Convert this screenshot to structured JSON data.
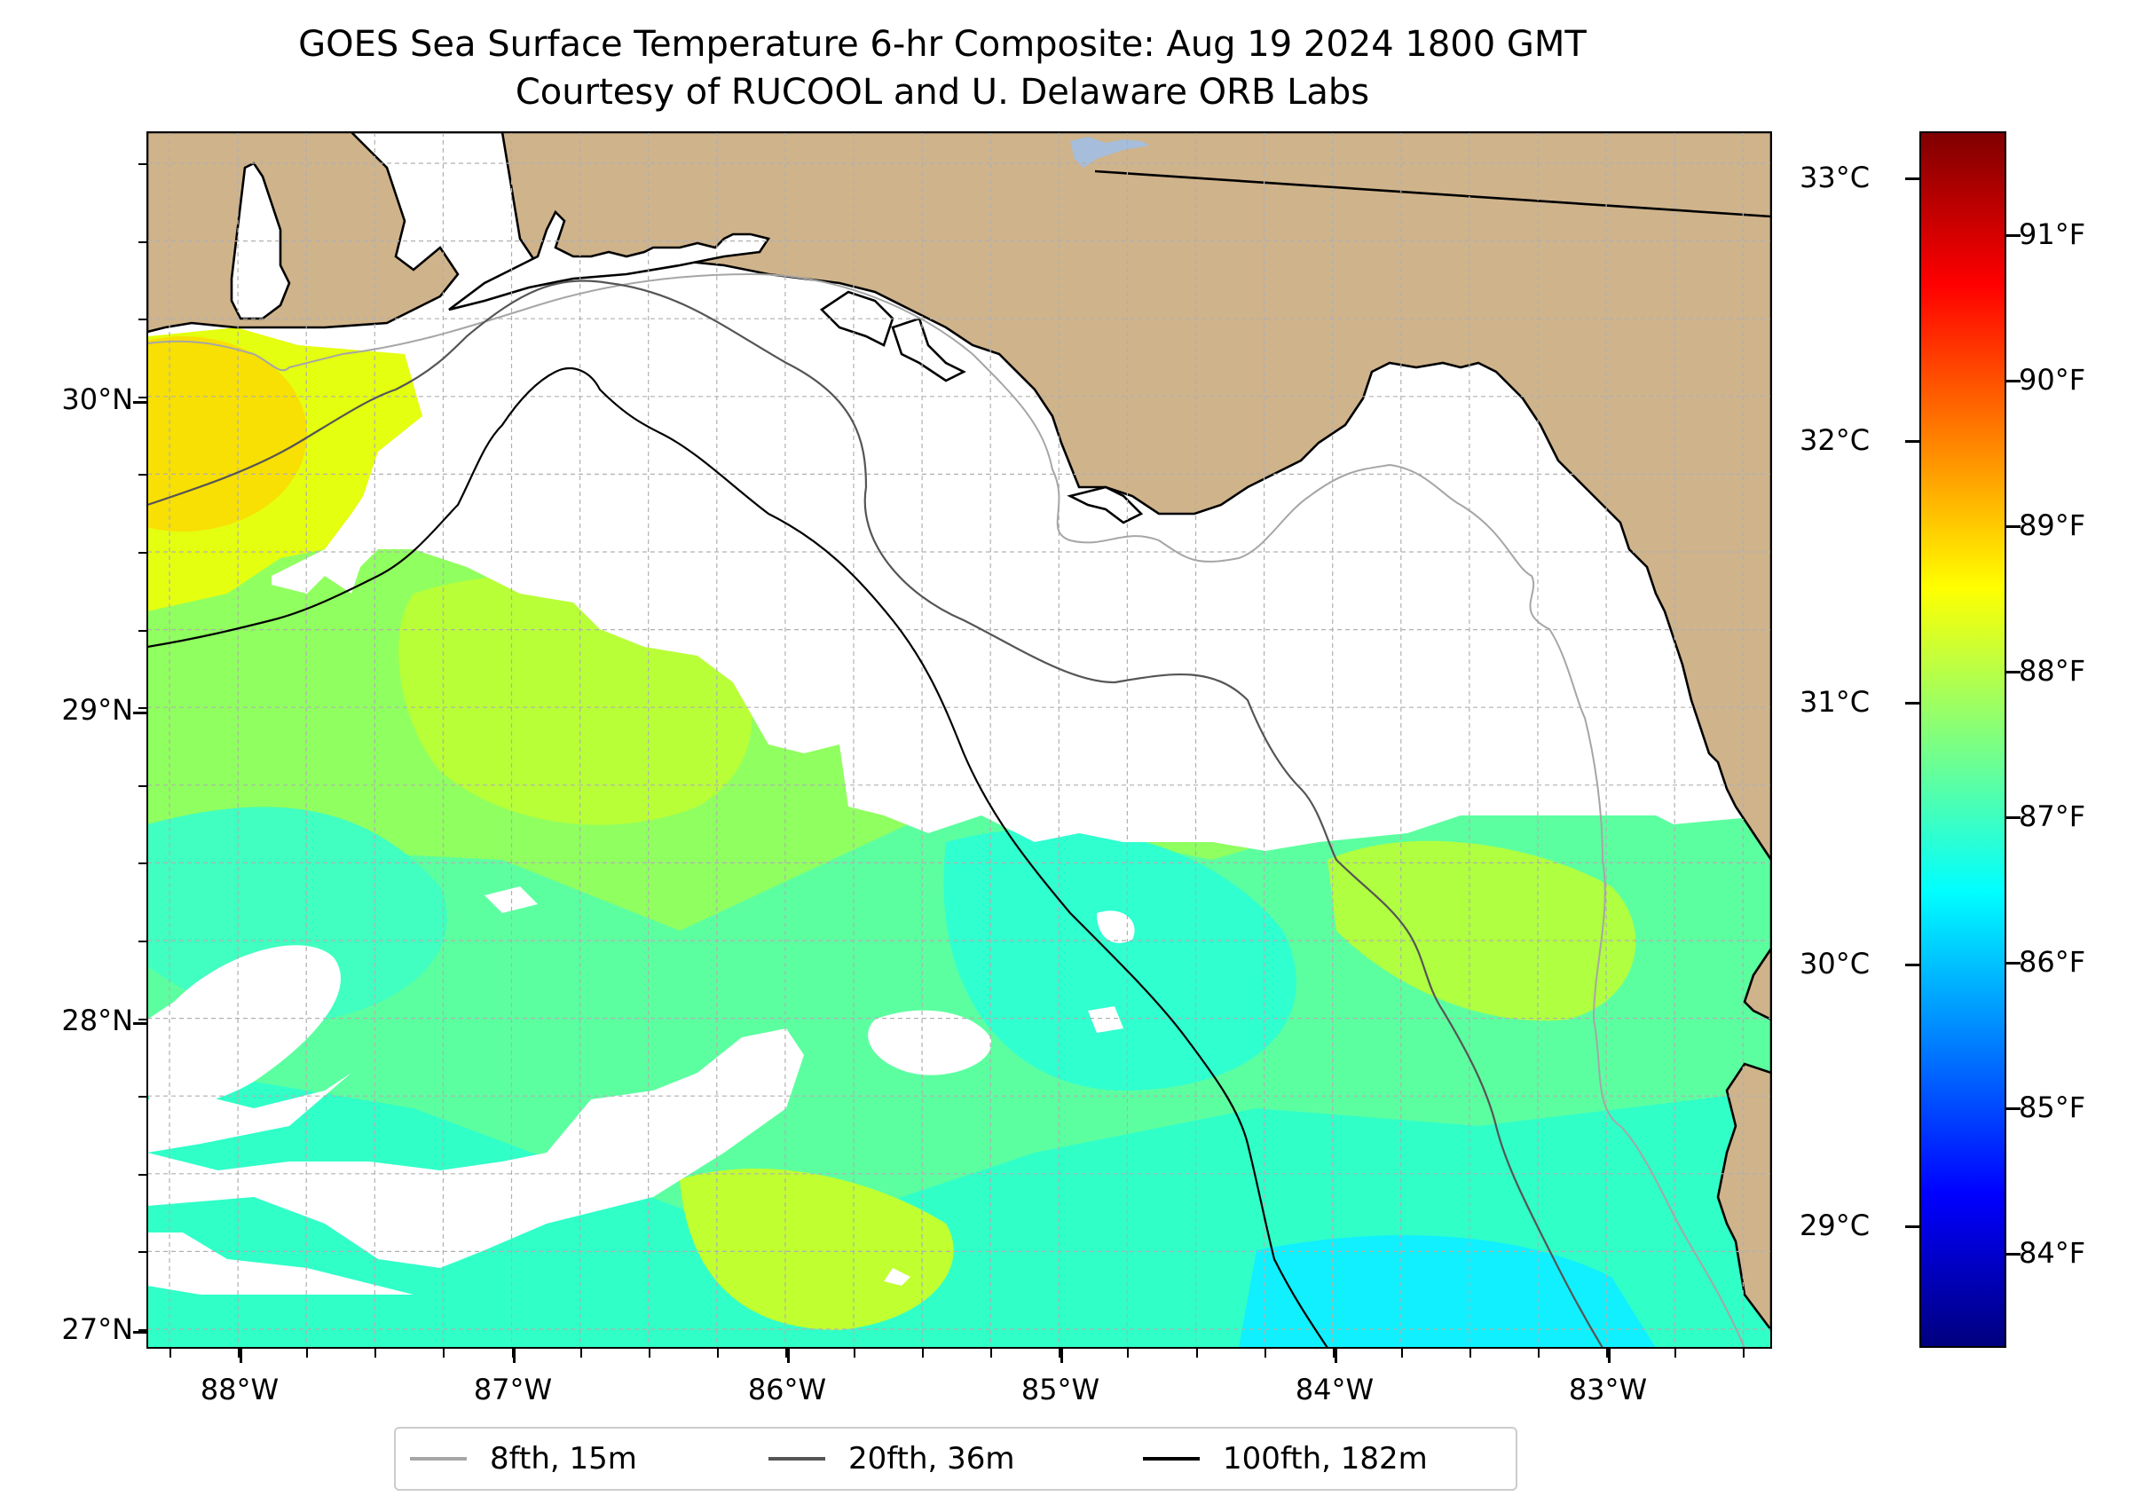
{
  "title": {
    "line1": "GOES Sea Surface Temperature 6-hr Composite: Aug 19 2024 1800 GMT",
    "line2": "Courtesy of RUCOOL and U. Delaware ORB Labs"
  },
  "map": {
    "land_color": "#cfb38b",
    "lake_color": "#a6bddb",
    "no_data_color": "#ffffff",
    "grid": true,
    "lat_labels": [
      "30°N",
      "29°N",
      "28°N",
      "27°N"
    ],
    "lon_labels": [
      "88°W",
      "87°W",
      "86°W",
      "85°W",
      "84°W",
      "83°W"
    ]
  },
  "colorbar": {
    "celsius_labels": [
      "33°C",
      "32°C",
      "31°C",
      "30°C",
      "29°C"
    ],
    "fahrenheit_labels": [
      "91°F",
      "90°F",
      "89°F",
      "88°F",
      "87°F",
      "86°F",
      "85°F",
      "84°F"
    ],
    "colormap": "jet",
    "range_f": [
      83.4,
      91.6
    ]
  },
  "legend": {
    "items": [
      {
        "label": "8fth, 15m",
        "color": "#a6a6a6"
      },
      {
        "label": "20fth, 36m",
        "color": "#555555"
      },
      {
        "label": "100fth, 182m",
        "color": "#000000"
      }
    ]
  }
}
